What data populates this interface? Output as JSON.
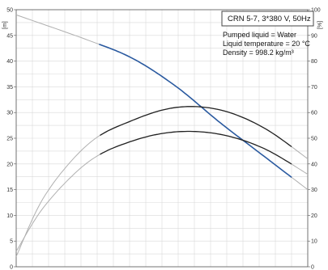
{
  "chart_data": {
    "type": "line",
    "title": "CRN 5-7, 3*380 V, 50Hz",
    "info_lines": [
      "Pumped liquid = Water",
      "Liquid temperature = 20 °C",
      "Density = 998.2 kg/m³"
    ],
    "left_axis": {
      "unit": "[m]",
      "min": 0,
      "max": 50,
      "ticks": [
        0,
        5,
        10,
        15,
        20,
        25,
        30,
        35,
        40,
        45,
        50
      ],
      "tick_labels": [
        "0",
        "5",
        "10",
        "15",
        "20",
        "25",
        "30",
        "35",
        "40",
        "45",
        "50"
      ]
    },
    "right_axis": {
      "unit": "[%]",
      "min": 0,
      "max": 100,
      "ticks": [
        0,
        10,
        20,
        30,
        40,
        50,
        60,
        70,
        80,
        90,
        100
      ],
      "tick_labels": [
        "0",
        "10",
        "20",
        "30",
        "40",
        "50",
        "60",
        "70",
        "80",
        "90",
        "100"
      ]
    },
    "x_axis": {
      "min": 0,
      "max": 1,
      "note": "x tick labels cut off at bottom edge"
    },
    "grid": true,
    "series": [
      {
        "role": "head",
        "axis": "left",
        "color": "#2a5aa0",
        "x": [
          0.0,
          0.25,
          0.4,
          0.55,
          0.7,
          0.85,
          1.0
        ],
        "y": [
          49.0,
          44.0,
          40.5,
          35.0,
          28.0,
          21.5,
          15.0
        ],
        "active_range": [
          0.28,
          0.95
        ]
      },
      {
        "role": "efficiency_upper",
        "axis": "right",
        "color": "#222222",
        "x": [
          0.0,
          0.1,
          0.25,
          0.4,
          0.55,
          0.7,
          0.85,
          1.0
        ],
        "y": [
          4.0,
          28.0,
          48.0,
          57.0,
          62.0,
          61.0,
          54.0,
          42.0
        ],
        "active_range": [
          0.28,
          0.95
        ]
      },
      {
        "role": "efficiency_lower",
        "axis": "right",
        "color": "#222222",
        "x": [
          0.0,
          0.1,
          0.25,
          0.4,
          0.55,
          0.7,
          0.85,
          1.0
        ],
        "y": [
          6.0,
          24.0,
          41.0,
          49.0,
          52.5,
          51.5,
          46.0,
          36.0
        ],
        "active_range": [
          0.28,
          0.95
        ]
      }
    ],
    "colors": {
      "grid": "#d9d9d9",
      "frame": "#555555",
      "inactive_curve": "#b0b0b0"
    }
  }
}
